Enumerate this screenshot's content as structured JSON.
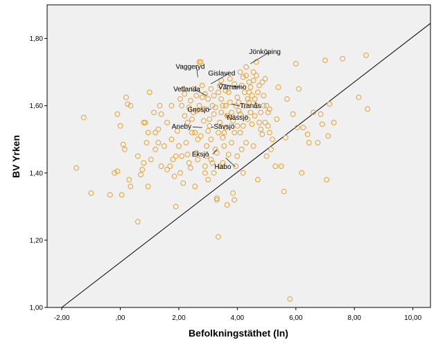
{
  "chart_data": {
    "type": "scatter",
    "title": "",
    "xlabel": "Befolkningstäthet (ln)",
    "ylabel": "BV Yrken",
    "xlim": [
      -2.5,
      10.6
    ],
    "ylim": [
      1.0,
      1.9
    ],
    "x_ticks": [
      -2,
      0,
      2,
      4,
      6,
      8,
      10
    ],
    "x_tick_labels": [
      "-2,00",
      ",00",
      "2,00",
      "4,00",
      "6,00",
      "8,00",
      "10,00"
    ],
    "y_ticks": [
      1.0,
      1.2,
      1.4,
      1.6,
      1.8
    ],
    "y_tick_labels": [
      "1,00",
      "1,20",
      "1,40",
      "1,60",
      "1,80"
    ],
    "grid": false,
    "background": "#f0f0f0",
    "point_color": "#e8a030",
    "reference_line": {
      "from": [
        -2.0,
        1.0
      ],
      "to": [
        10.6,
        1.845
      ]
    },
    "annotations": [
      {
        "label": "Jönköping",
        "x": 4.45,
        "y": 1.725
      },
      {
        "label": "Vaggeryd",
        "x": 2.65,
        "y": 1.685
      },
      {
        "label": "Gislaved",
        "x": 3.1,
        "y": 1.665
      },
      {
        "label": "Värnamo",
        "x": 3.4,
        "y": 1.665
      },
      {
        "label": "Vetlanda",
        "x": 2.95,
        "y": 1.63
      },
      {
        "label": "Gnosjö",
        "x": 3.1,
        "y": 1.59
      },
      {
        "label": "Tranås",
        "x": 3.8,
        "y": 1.605
      },
      {
        "label": "Nässjö",
        "x": 3.6,
        "y": 1.575
      },
      {
        "label": "Aneby",
        "x": 2.8,
        "y": 1.535
      },
      {
        "label": "Sävsjö",
        "x": 3.1,
        "y": 1.535
      },
      {
        "label": "Eksjö",
        "x": 3.3,
        "y": 1.47
      },
      {
        "label": "Habo",
        "x": 3.6,
        "y": 1.445
      }
    ],
    "series": [
      {
        "points": [
          [
            -1.5,
            1.415
          ],
          [
            -1.25,
            1.565
          ],
          [
            -1.0,
            1.34
          ],
          [
            -0.35,
            1.335
          ],
          [
            -0.2,
            1.4
          ],
          [
            -0.1,
            1.405
          ],
          [
            -0.1,
            1.575
          ],
          [
            0.0,
            1.54
          ],
          [
            0.05,
            1.335
          ],
          [
            0.1,
            1.485
          ],
          [
            0.15,
            1.47
          ],
          [
            0.2,
            1.625
          ],
          [
            0.25,
            1.605
          ],
          [
            0.35,
            1.6
          ],
          [
            0.3,
            1.38
          ],
          [
            0.35,
            1.36
          ],
          [
            0.6,
            1.255
          ],
          [
            0.7,
            1.395
          ],
          [
            0.75,
            1.41
          ],
          [
            0.8,
            1.43
          ],
          [
            0.85,
            1.55
          ],
          [
            0.9,
            1.49
          ],
          [
            0.95,
            1.36
          ],
          [
            1.0,
            1.64
          ],
          [
            1.15,
            1.58
          ],
          [
            1.2,
            1.52
          ],
          [
            1.3,
            1.53
          ],
          [
            1.35,
            1.6
          ],
          [
            1.4,
            1.42
          ],
          [
            1.5,
            1.48
          ],
          [
            1.6,
            1.41
          ],
          [
            1.7,
            1.42
          ],
          [
            1.75,
            1.5
          ],
          [
            1.8,
            1.44
          ],
          [
            1.85,
            1.39
          ],
          [
            1.9,
            1.3
          ],
          [
            1.95,
            1.525
          ],
          [
            2.0,
            1.48
          ],
          [
            2.05,
            1.4
          ],
          [
            2.1,
            1.45
          ],
          [
            2.15,
            1.37
          ],
          [
            2.2,
            1.57
          ],
          [
            2.25,
            1.49
          ],
          [
            2.3,
            1.55
          ],
          [
            2.35,
            1.43
          ],
          [
            2.4,
            1.415
          ],
          [
            2.45,
            1.52
          ],
          [
            2.5,
            1.58
          ],
          [
            2.55,
            1.36
          ],
          [
            2.6,
            1.46
          ],
          [
            2.65,
            1.5
          ],
          [
            2.7,
            1.6
          ],
          [
            2.7,
            1.73
          ],
          [
            2.75,
            1.73
          ],
          [
            2.8,
            1.625
          ],
          [
            2.85,
            1.555
          ],
          [
            2.9,
            1.42
          ],
          [
            2.95,
            1.48
          ],
          [
            3.0,
            1.38
          ],
          [
            3.05,
            1.54
          ],
          [
            3.1,
            1.65
          ],
          [
            3.15,
            1.6
          ],
          [
            3.2,
            1.4
          ],
          [
            3.25,
            1.47
          ],
          [
            3.3,
            1.325
          ],
          [
            3.3,
            1.32
          ],
          [
            3.35,
            1.21
          ],
          [
            3.4,
            1.66
          ],
          [
            3.45,
            1.58
          ],
          [
            3.5,
            1.43
          ],
          [
            3.55,
            1.52
          ],
          [
            3.6,
            1.6
          ],
          [
            3.65,
            1.305
          ],
          [
            3.7,
            1.64
          ],
          [
            3.75,
            1.565
          ],
          [
            3.8,
            1.49
          ],
          [
            3.85,
            1.34
          ],
          [
            3.9,
            1.32
          ],
          [
            3.95,
            1.42
          ],
          [
            4.0,
            1.625
          ],
          [
            4.05,
            1.585
          ],
          [
            4.1,
            1.52
          ],
          [
            4.15,
            1.47
          ],
          [
            4.2,
            1.4
          ],
          [
            4.25,
            1.64
          ],
          [
            4.3,
            1.69
          ],
          [
            4.35,
            1.56
          ],
          [
            4.4,
            1.61
          ],
          [
            4.45,
            1.655
          ],
          [
            4.5,
            1.545
          ],
          [
            4.55,
            1.48
          ],
          [
            4.6,
            1.62
          ],
          [
            4.65,
            1.73
          ],
          [
            4.7,
            1.38
          ],
          [
            4.75,
            1.66
          ],
          [
            4.8,
            1.53
          ],
          [
            4.85,
            1.67
          ],
          [
            4.9,
            1.6
          ],
          [
            4.95,
            1.55
          ],
          [
            5.0,
            1.45
          ],
          [
            5.05,
            1.58
          ],
          [
            5.1,
            1.52
          ],
          [
            5.2,
            1.5
          ],
          [
            5.3,
            1.42
          ],
          [
            5.35,
            1.56
          ],
          [
            5.4,
            1.655
          ],
          [
            5.5,
            1.42
          ],
          [
            5.6,
            1.345
          ],
          [
            5.65,
            1.505
          ],
          [
            5.7,
            1.62
          ],
          [
            5.8,
            1.025
          ],
          [
            5.9,
            1.575
          ],
          [
            6.0,
            1.725
          ],
          [
            6.05,
            1.535
          ],
          [
            6.1,
            1.65
          ],
          [
            6.2,
            1.4
          ],
          [
            6.25,
            1.535
          ],
          [
            6.4,
            1.515
          ],
          [
            6.45,
            1.49
          ],
          [
            6.6,
            1.58
          ],
          [
            6.75,
            1.49
          ],
          [
            6.85,
            1.575
          ],
          [
            6.9,
            1.545
          ],
          [
            7.0,
            1.735
          ],
          [
            7.05,
            1.38
          ],
          [
            7.1,
            1.51
          ],
          [
            7.15,
            1.605
          ],
          [
            7.3,
            1.55
          ],
          [
            7.6,
            1.74
          ],
          [
            8.15,
            1.625
          ],
          [
            8.4,
            1.75
          ],
          [
            8.45,
            1.59
          ],
          [
            1.75,
            1.6
          ],
          [
            1.9,
            1.45
          ],
          [
            2.05,
            1.62
          ],
          [
            2.2,
            1.635
          ],
          [
            2.3,
            1.455
          ],
          [
            2.35,
            1.595
          ],
          [
            2.45,
            1.56
          ],
          [
            2.55,
            1.52
          ],
          [
            2.6,
            1.585
          ],
          [
            2.65,
            1.44
          ],
          [
            2.75,
            1.51
          ],
          [
            2.85,
            1.59
          ],
          [
            2.95,
            1.45
          ],
          [
            3.0,
            1.62
          ],
          [
            3.05,
            1.56
          ],
          [
            3.1,
            1.5
          ],
          [
            3.15,
            1.43
          ],
          [
            3.2,
            1.575
          ],
          [
            3.25,
            1.595
          ],
          [
            3.35,
            1.52
          ],
          [
            3.4,
            1.55
          ],
          [
            3.45,
            1.62
          ],
          [
            3.5,
            1.6
          ],
          [
            3.55,
            1.48
          ],
          [
            3.6,
            1.535
          ],
          [
            3.65,
            1.57
          ],
          [
            3.7,
            1.455
          ],
          [
            3.75,
            1.61
          ],
          [
            3.8,
            1.58
          ],
          [
            3.85,
            1.555
          ],
          [
            3.9,
            1.52
          ],
          [
            3.95,
            1.6
          ],
          [
            4.0,
            1.54
          ],
          [
            4.05,
            1.61
          ],
          [
            4.1,
            1.575
          ],
          [
            4.15,
            1.66
          ],
          [
            4.2,
            1.54
          ],
          [
            4.25,
            1.6
          ],
          [
            4.3,
            1.49
          ],
          [
            4.35,
            1.62
          ],
          [
            4.4,
            1.67
          ],
          [
            4.45,
            1.58
          ],
          [
            4.5,
            1.63
          ],
          [
            4.55,
            1.7
          ],
          [
            4.6,
            1.57
          ],
          [
            4.65,
            1.6
          ],
          [
            4.7,
            1.64
          ],
          [
            4.75,
            1.55
          ],
          [
            4.8,
            1.58
          ],
          [
            4.85,
            1.515
          ],
          [
            4.9,
            1.63
          ],
          [
            5.0,
            1.6
          ],
          [
            5.05,
            1.54
          ],
          [
            5.1,
            1.59
          ],
          [
            5.15,
            1.47
          ],
          [
            2.9,
            1.4
          ],
          [
            3.0,
            1.525
          ],
          [
            3.1,
            1.44
          ],
          [
            3.3,
            1.46
          ],
          [
            3.5,
            1.505
          ],
          [
            2.15,
            1.65
          ],
          [
            2.4,
            1.615
          ],
          [
            2.5,
            1.65
          ],
          [
            2.6,
            1.63
          ],
          [
            2.8,
            1.66
          ],
          [
            2.9,
            1.635
          ],
          [
            3.2,
            1.63
          ],
          [
            3.35,
            1.64
          ],
          [
            3.45,
            1.675
          ],
          [
            3.6,
            1.645
          ],
          [
            3.75,
            1.68
          ],
          [
            3.9,
            1.665
          ],
          [
            4.1,
            1.7
          ],
          [
            4.2,
            1.685
          ],
          [
            4.3,
            1.715
          ],
          [
            4.4,
            1.64
          ],
          [
            4.55,
            1.675
          ],
          [
            4.65,
            1.69
          ],
          [
            4.95,
            1.68
          ],
          [
            4.0,
            1.45
          ],
          [
            3.4,
            1.42
          ],
          [
            2.1,
            1.6
          ],
          [
            1.6,
            1.55
          ],
          [
            1.4,
            1.575
          ],
          [
            1.2,
            1.47
          ],
          [
            0.95,
            1.52
          ],
          [
            0.8,
            1.55
          ],
          [
            0.6,
            1.45
          ],
          [
            1.05,
            1.44
          ],
          [
            1.3,
            1.49
          ]
        ]
      }
    ]
  }
}
